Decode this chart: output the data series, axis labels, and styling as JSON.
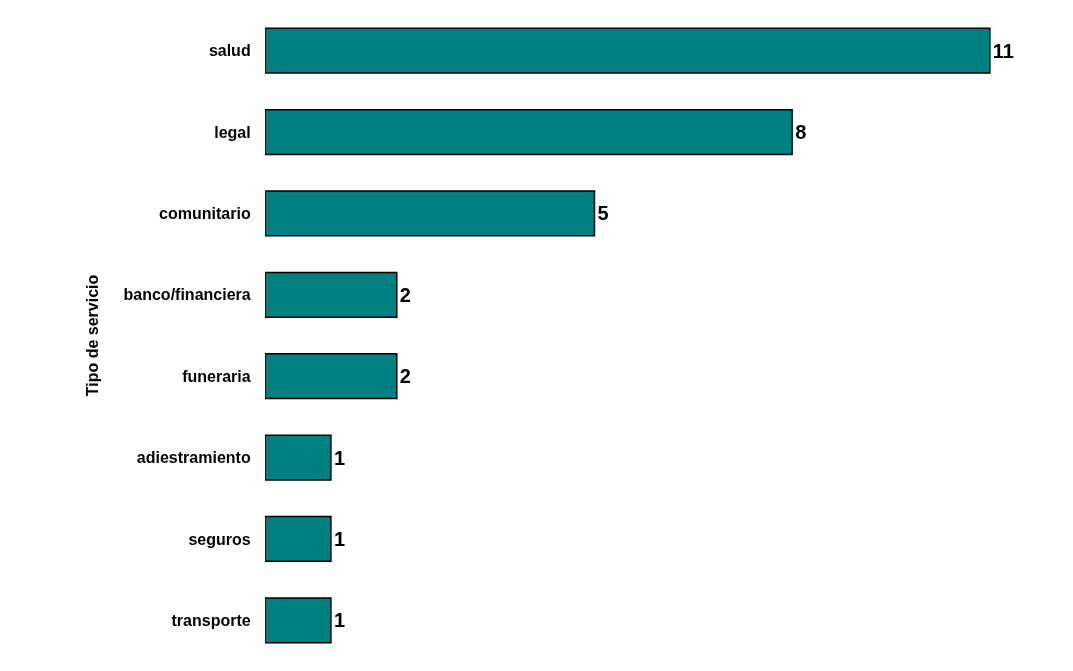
{
  "chart_data": {
    "type": "bar",
    "orientation": "horizontal",
    "ylabel": "Tipo de servicio",
    "categories": [
      "salud",
      "legal",
      "comunitario",
      "banco/financiera",
      "funeraria",
      "adiestramiento",
      "seguros",
      "transporte"
    ],
    "values": [
      11,
      8,
      5,
      2,
      2,
      1,
      1,
      1
    ],
    "color": "#008080",
    "data_labels": true
  }
}
